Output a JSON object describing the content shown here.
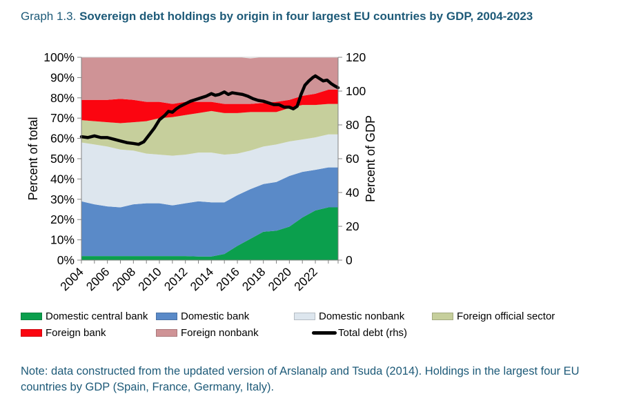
{
  "header": {
    "label": "Graph 1.3.",
    "heading": "Sovereign debt holdings by origin in four largest EU countries by GDP, 2004-2023"
  },
  "note": {
    "line1": "Note: data constructed from the updated version of Arslanalp and Tsuda (2014). Holdings in the largest four EU",
    "line2": "countries by GDP (Spain, France, Germany, Italy)."
  },
  "colors": {
    "title_text": "#1d5a78",
    "axis_line": "#808080",
    "plot_border": "#c9c9c9",
    "tick_label": "#000000"
  },
  "legend": {
    "items": [
      {
        "name": "Domestic central bank",
        "color": "#0b9f4d",
        "type": "area"
      },
      {
        "name": "Domestic bank",
        "color": "#5a8ac8",
        "type": "area"
      },
      {
        "name": "Domestic nonbank",
        "color": "#dde6ee",
        "type": "area"
      },
      {
        "name": "Foreign official sector",
        "color": "#c6cf9c",
        "type": "area"
      },
      {
        "name": "Foreign bank",
        "color": "#fb0510",
        "type": "area"
      },
      {
        "name": "Foreign nonbank",
        "color": "#cf9396",
        "type": "area"
      },
      {
        "name": "Total debt (rhs)",
        "color": "#000000",
        "type": "line"
      }
    ]
  },
  "chart_data": {
    "type": "area",
    "stacked": true,
    "title": "Sovereign debt holdings by origin in four largest EU countries by GDP, 2004-2023",
    "x": [
      2004,
      2005,
      2006,
      2007,
      2008,
      2009,
      2010,
      2011,
      2012,
      2013,
      2014,
      2015,
      2016,
      2017,
      2018,
      2019,
      2020,
      2021,
      2022,
      2023
    ],
    "x_axis": {
      "min": 2004,
      "max": 2023.75,
      "labeled_ticks": [
        2004,
        2006,
        2008,
        2010,
        2012,
        2014,
        2016,
        2018,
        2020,
        2022
      ],
      "minor_tick_every_years": 1
    },
    "left_axis": {
      "label": "Percent of total",
      "min": 0,
      "max": 100,
      "tick_step": 10,
      "unit": "%"
    },
    "right_axis": {
      "label": "Percent of GDP",
      "min": 0,
      "max": 120,
      "tick_step": 20
    },
    "series": [
      {
        "name": "Domestic central bank",
        "color": "#0b9f4d",
        "values": [
          2,
          2,
          2,
          2,
          2,
          2,
          2,
          2,
          2,
          1.8,
          1.8,
          3,
          7,
          10.5,
          14,
          14.5,
          16.5,
          21,
          24.5,
          26
        ]
      },
      {
        "name": "Domestic bank",
        "color": "#5a8ac8",
        "values": [
          27,
          25.5,
          24.5,
          24,
          25.5,
          26,
          26,
          25,
          26,
          27.2,
          26.7,
          25.5,
          25,
          24.5,
          23.5,
          24,
          25,
          22.5,
          20,
          19.7
        ]
      },
      {
        "name": "Domestic nonbank",
        "color": "#dde6ee",
        "values": [
          29,
          29.5,
          29.5,
          28.5,
          26.5,
          24.5,
          24,
          24.5,
          24,
          24,
          24.5,
          23.5,
          20.5,
          19,
          18.5,
          18.5,
          17,
          16,
          16,
          16.3
        ]
      },
      {
        "name": "Foreign official sector",
        "color": "#c6cf9c",
        "values": [
          11,
          11.5,
          12,
          13,
          14,
          16,
          18,
          19,
          19.5,
          19.5,
          20.5,
          20.5,
          20,
          19,
          17,
          16,
          16.5,
          17,
          16,
          15
        ]
      },
      {
        "name": "Foreign bank",
        "color": "#fb0510",
        "values": [
          10,
          10.5,
          11,
          12,
          11,
          9.5,
          8,
          6.5,
          6.5,
          5.5,
          4.5,
          4.5,
          4.5,
          4,
          4.5,
          5,
          4,
          4.5,
          5.5,
          7
        ]
      },
      {
        "name": "Foreign nonbank",
        "color": "#cf9396",
        "values": [
          21,
          21,
          21,
          20.5,
          21,
          22,
          22,
          23,
          22,
          22,
          22,
          23,
          23,
          22.5,
          22.5,
          22,
          21,
          19,
          18,
          16
        ]
      }
    ],
    "line_series": {
      "name": "Total debt (rhs)",
      "axis": "right",
      "color": "#000000",
      "x": [
        2004.0,
        2004.5,
        2005.0,
        2005.5,
        2006.0,
        2006.5,
        2007.0,
        2007.5,
        2008.0,
        2008.4,
        2008.8,
        2009.2,
        2009.6,
        2010.0,
        2010.4,
        2010.7,
        2011.0,
        2011.3,
        2011.6,
        2012.0,
        2012.4,
        2012.8,
        2013.2,
        2013.6,
        2014.0,
        2014.3,
        2014.6,
        2015.0,
        2015.3,
        2015.6,
        2016.0,
        2016.4,
        2016.8,
        2017.2,
        2017.6,
        2018.0,
        2018.4,
        2018.8,
        2019.2,
        2019.6,
        2020.0,
        2020.3,
        2020.6,
        2020.9,
        2021.2,
        2021.5,
        2021.8,
        2022.0,
        2022.3,
        2022.6,
        2022.9,
        2023.2,
        2023.5,
        2023.75
      ],
      "y": [
        73,
        72.5,
        73.5,
        72.5,
        72.5,
        71.5,
        70.5,
        69.5,
        69,
        68.5,
        70,
        74,
        78,
        83,
        85.5,
        88,
        87.5,
        89.5,
        91,
        92.5,
        94,
        95,
        96,
        97,
        98.5,
        97.5,
        98,
        99.5,
        98,
        99,
        98.5,
        98,
        97,
        95.5,
        94.5,
        94,
        93,
        92,
        92,
        90.5,
        90.5,
        89.5,
        91,
        98,
        103.5,
        106,
        108,
        109,
        107.5,
        106,
        106.5,
        104.5,
        103,
        102
      ]
    }
  }
}
